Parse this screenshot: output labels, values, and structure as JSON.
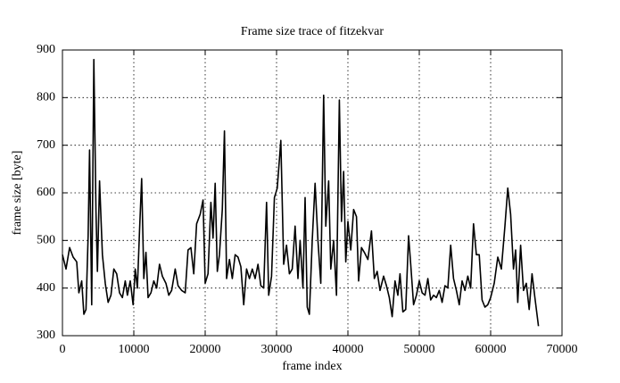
{
  "chart_data": {
    "type": "line",
    "title": "Frame size trace of fitzekvar",
    "x_label": "frame index",
    "y_label": "frame size [byte]",
    "xlim": [
      0,
      70000
    ],
    "xticks": [
      0,
      10000,
      20000,
      30000,
      40000,
      50000,
      60000,
      70000
    ],
    "ylim": [
      300,
      900
    ],
    "yticks": [
      300,
      400,
      500,
      600,
      700,
      800,
      900
    ],
    "grid": true,
    "series": [
      {
        "color": "#000000",
        "x": [
          0,
          500,
          1000,
          1500,
          2000,
          2300,
          2700,
          3000,
          3300,
          3600,
          3800,
          4100,
          4400,
          4700,
          4900,
          5200,
          5600,
          6000,
          6400,
          6800,
          7200,
          7600,
          8000,
          8400,
          8800,
          9100,
          9500,
          9900,
          10200,
          10500,
          10800,
          11100,
          11400,
          11700,
          12000,
          12400,
          12800,
          13200,
          13600,
          14000,
          14500,
          14900,
          15300,
          15800,
          16200,
          16700,
          17200,
          17600,
          18000,
          18400,
          18800,
          19300,
          19700,
          20000,
          20400,
          20800,
          21100,
          21400,
          21700,
          22000,
          22400,
          22700,
          23000,
          23400,
          23800,
          24200,
          24600,
          25000,
          25400,
          25800,
          26200,
          26600,
          27000,
          27400,
          27800,
          28200,
          28600,
          28900,
          29300,
          29700,
          30100,
          30600,
          31000,
          31400,
          31800,
          32200,
          32600,
          33000,
          33300,
          33700,
          34000,
          34300,
          34600,
          35000,
          35400,
          35800,
          36200,
          36600,
          36900,
          37300,
          37600,
          38000,
          38400,
          38800,
          39100,
          39400,
          39700,
          40000,
          40400,
          40800,
          41200,
          41500,
          41900,
          42300,
          42800,
          43300,
          43700,
          44100,
          44500,
          45000,
          45400,
          45800,
          46200,
          46600,
          47000,
          47300,
          47700,
          48100,
          48500,
          48800,
          49200,
          49600,
          50000,
          50400,
          50800,
          51200,
          51600,
          52000,
          52400,
          52800,
          53200,
          53600,
          54000,
          54400,
          54800,
          55200,
          55600,
          56000,
          56400,
          56800,
          57200,
          57600,
          58000,
          58400,
          58800,
          59200,
          59600,
          60000,
          60500,
          61000,
          61500,
          62000,
          62400,
          62800,
          63200,
          63500,
          63800,
          64200,
          64600,
          65000,
          65400,
          65800,
          66200,
          66700
        ],
        "values": [
          470,
          440,
          485,
          465,
          455,
          390,
          415,
          345,
          355,
          510,
          690,
          365,
          880,
          560,
          435,
          625,
          470,
          410,
          370,
          385,
          440,
          430,
          390,
          380,
          415,
          385,
          415,
          365,
          440,
          400,
          520,
          630,
          420,
          475,
          380,
          390,
          415,
          400,
          450,
          425,
          410,
          385,
          395,
          440,
          405,
          395,
          390,
          480,
          485,
          430,
          535,
          555,
          585,
          410,
          430,
          580,
          505,
          620,
          435,
          470,
          565,
          730,
          420,
          460,
          420,
          470,
          465,
          445,
          365,
          440,
          420,
          440,
          420,
          450,
          405,
          400,
          580,
          385,
          425,
          590,
          610,
          710,
          450,
          490,
          430,
          440,
          530,
          420,
          500,
          400,
          590,
          360,
          345,
          500,
          620,
          500,
          410,
          805,
          530,
          625,
          440,
          500,
          385,
          795,
          540,
          645,
          455,
          540,
          480,
          565,
          550,
          415,
          485,
          475,
          460,
          520,
          420,
          435,
          395,
          425,
          405,
          380,
          340,
          415,
          385,
          430,
          350,
          355,
          510,
          450,
          365,
          385,
          415,
          390,
          385,
          420,
          375,
          385,
          380,
          395,
          370,
          405,
          400,
          490,
          420,
          395,
          365,
          415,
          395,
          425,
          400,
          535,
          470,
          470,
          375,
          360,
          365,
          380,
          410,
          465,
          440,
          530,
          610,
          555,
          440,
          480,
          370,
          490,
          395,
          410,
          355,
          430,
          380,
          320
        ]
      }
    ]
  }
}
